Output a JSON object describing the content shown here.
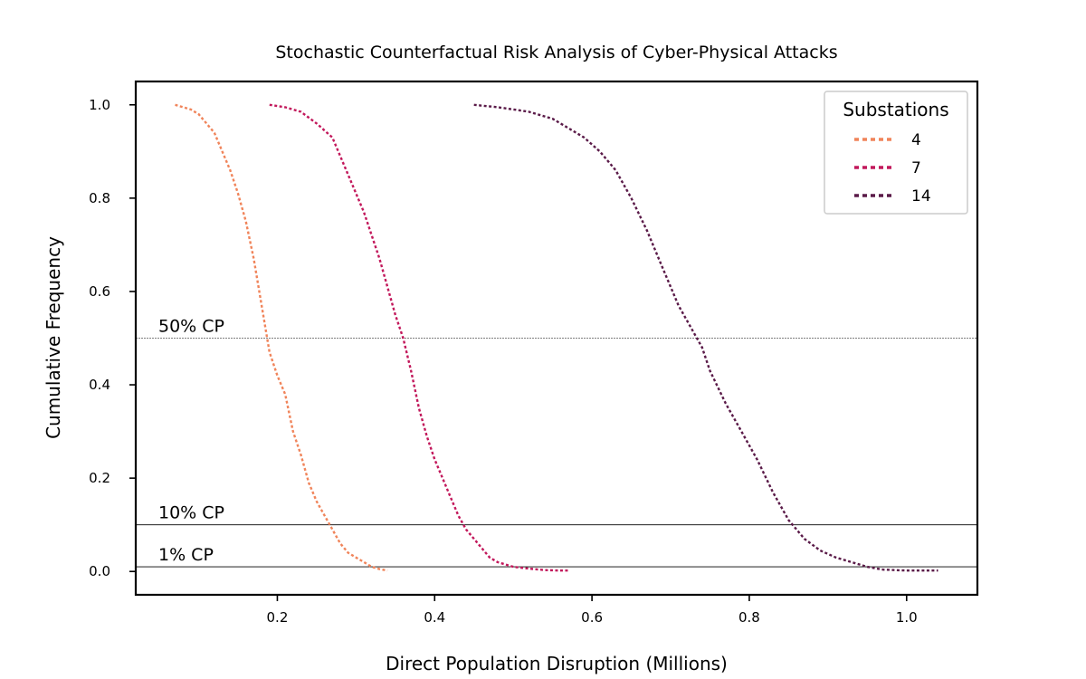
{
  "chart_data": {
    "type": "line",
    "title": "Stochastic Counterfactual Risk Analysis of Cyber-Physical Attacks",
    "xlabel": "Direct Population Disruption (Millions)",
    "ylabel": "Cumulative Frequency",
    "xlim": [
      0.02,
      1.09
    ],
    "ylim": [
      -0.05,
      1.05
    ],
    "xticks": [
      "0.2",
      "0.4",
      "0.6",
      "0.8",
      "1.0"
    ],
    "yticks": [
      "0.0",
      "0.2",
      "0.4",
      "0.6",
      "0.8",
      "1.0"
    ],
    "grid": false,
    "legend": {
      "title": "Substations",
      "placement": "top-right"
    },
    "reference_lines": [
      {
        "label": "50% CP",
        "y": 0.5
      },
      {
        "label": "10% CP",
        "y": 0.1
      },
      {
        "label": "1% CP",
        "y": 0.01
      }
    ],
    "series": [
      {
        "name": "4",
        "color": "#f0845a",
        "x": [
          0.07,
          0.09,
          0.1,
          0.11,
          0.12,
          0.13,
          0.14,
          0.15,
          0.16,
          0.17,
          0.18,
          0.19,
          0.2,
          0.21,
          0.22,
          0.23,
          0.24,
          0.25,
          0.26,
          0.27,
          0.28,
          0.29,
          0.3,
          0.31,
          0.32,
          0.33,
          0.34
        ],
        "y": [
          1.0,
          0.99,
          0.98,
          0.96,
          0.94,
          0.9,
          0.86,
          0.81,
          0.75,
          0.67,
          0.57,
          0.47,
          0.42,
          0.38,
          0.3,
          0.25,
          0.19,
          0.15,
          0.12,
          0.09,
          0.06,
          0.04,
          0.03,
          0.02,
          0.01,
          0.005,
          0.002
        ]
      },
      {
        "name": "7",
        "color": "#c2185b",
        "x": [
          0.19,
          0.21,
          0.23,
          0.25,
          0.27,
          0.29,
          0.31,
          0.33,
          0.35,
          0.36,
          0.37,
          0.38,
          0.39,
          0.4,
          0.41,
          0.42,
          0.43,
          0.44,
          0.45,
          0.46,
          0.47,
          0.48,
          0.5,
          0.52,
          0.54,
          0.56,
          0.57
        ],
        "y": [
          1.0,
          0.995,
          0.985,
          0.96,
          0.93,
          0.85,
          0.77,
          0.67,
          0.55,
          0.5,
          0.43,
          0.35,
          0.29,
          0.24,
          0.2,
          0.16,
          0.12,
          0.09,
          0.07,
          0.05,
          0.03,
          0.02,
          0.01,
          0.006,
          0.003,
          0.002,
          0.002
        ]
      },
      {
        "name": "14",
        "color": "#5a1a48",
        "x": [
          0.45,
          0.48,
          0.5,
          0.52,
          0.55,
          0.57,
          0.59,
          0.61,
          0.63,
          0.65,
          0.67,
          0.69,
          0.71,
          0.73,
          0.74,
          0.75,
          0.77,
          0.79,
          0.81,
          0.83,
          0.85,
          0.87,
          0.89,
          0.91,
          0.93,
          0.95,
          0.97,
          1.0,
          1.04
        ],
        "y": [
          1.0,
          0.995,
          0.99,
          0.985,
          0.97,
          0.95,
          0.93,
          0.9,
          0.86,
          0.8,
          0.73,
          0.65,
          0.57,
          0.51,
          0.48,
          0.43,
          0.36,
          0.3,
          0.24,
          0.17,
          0.11,
          0.07,
          0.045,
          0.03,
          0.02,
          0.01,
          0.004,
          0.002,
          0.002
        ]
      }
    ]
  }
}
